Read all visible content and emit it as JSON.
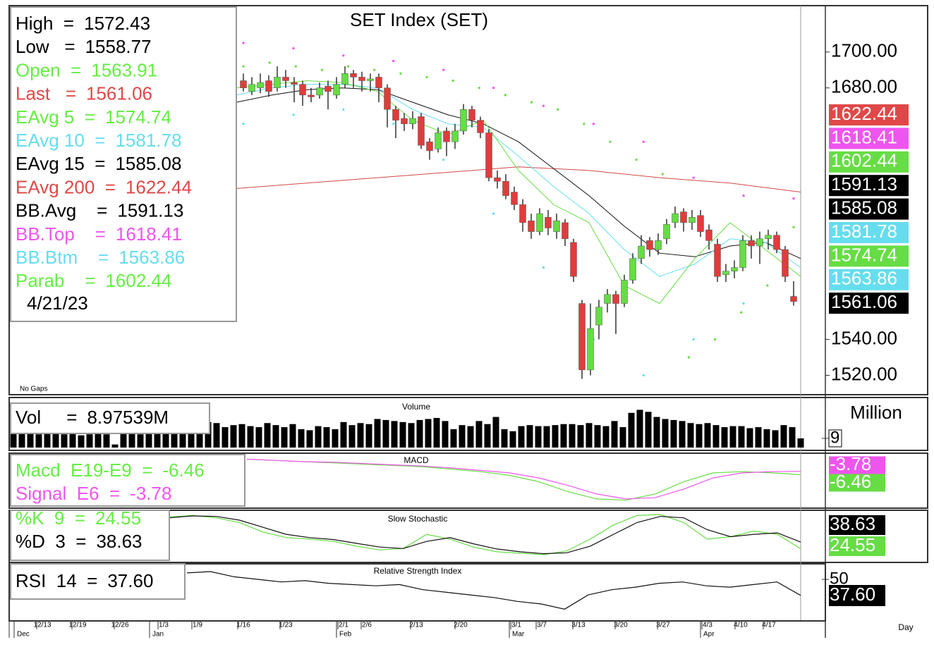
{
  "chart_data": [
    {
      "type": "candlestick",
      "title": "SET Index (SET)",
      "annotation": "No Gaps",
      "date": "4/21/23",
      "up_color": "#66dd44",
      "down_color": "#e03c3c",
      "readouts": [
        {
          "label": "High  =",
          "value": 1572.43,
          "color": "#000000"
        },
        {
          "label": "Low   =",
          "value": 1558.77,
          "color": "#000000"
        },
        {
          "label": "Open  =",
          "value": 1563.91,
          "color": "#66ee44"
        },
        {
          "label": "Last   =",
          "value": 1561.06,
          "color": "#e04848"
        },
        {
          "label": "EAvg 5  =",
          "value": 1574.74,
          "color": "#66ee44"
        },
        {
          "label": "EAvg 10  =",
          "value": 1581.78,
          "color": "#66ddee"
        },
        {
          "label": "EAvg 15  =",
          "value": 1585.08,
          "color": "#000000"
        },
        {
          "label": "EAvg 200  =",
          "value": 1622.44,
          "color": "#e04848"
        },
        {
          "label": "BB.Avg    =",
          "value": 1591.13,
          "color": "#000000"
        },
        {
          "label": "BB.Top    =",
          "value": 1618.41,
          "color": "#ee55ee"
        },
        {
          "label": "BB.Btm    =",
          "value": 1563.86,
          "color": "#66ddee"
        },
        {
          "label": "Parab    =",
          "value": 1602.44,
          "color": "#66ee44"
        }
      ],
      "open": [
        1684,
        1678,
        1680,
        1684,
        1680,
        1686,
        1683,
        1682,
        1676,
        1676,
        1681,
        1676,
        1682,
        1688,
        1686,
        1684,
        1686,
        1680,
        1668,
        1663,
        1660,
        1664,
        1650,
        1646,
        1656,
        1650,
        1656,
        1668,
        1662,
        1655,
        1630,
        1628,
        1622,
        1615,
        1606,
        1600,
        1608,
        1600,
        1605,
        1594,
        1560,
        1523,
        1548,
        1560,
        1565,
        1560,
        1573,
        1585,
        1595,
        1590,
        1596,
        1605,
        1611,
        1605,
        1609,
        1601,
        1593,
        1576,
        1578,
        1580,
        1595,
        1592,
        1596,
        1598,
        1590,
        1563.91
      ],
      "high": [
        1688,
        1686,
        1688,
        1687,
        1692,
        1690,
        1686,
        1684,
        1680,
        1683,
        1684,
        1686,
        1692,
        1690,
        1689,
        1688,
        1688,
        1682,
        1670,
        1666,
        1667,
        1666,
        1652,
        1658,
        1658,
        1660,
        1671,
        1670,
        1664,
        1657,
        1634,
        1632,
        1625,
        1618,
        1610,
        1613,
        1612,
        1610,
        1607,
        1596,
        1562,
        1560,
        1562,
        1568,
        1567,
        1576,
        1588,
        1598,
        1597,
        1599,
        1607,
        1614,
        1613,
        1612,
        1612,
        1604,
        1596,
        1582,
        1584,
        1598,
        1598,
        1600,
        1601,
        1600,
        1592,
        1572.43
      ],
      "low": [
        1678,
        1676,
        1677,
        1675,
        1678,
        1680,
        1672,
        1670,
        1672,
        1674,
        1668,
        1674,
        1680,
        1680,
        1678,
        1678,
        1672,
        1658,
        1652,
        1656,
        1657,
        1646,
        1640,
        1644,
        1642,
        1646,
        1654,
        1658,
        1652,
        1628,
        1624,
        1618,
        1612,
        1600,
        1596,
        1598,
        1598,
        1596,
        1592,
        1572,
        1518,
        1520,
        1540,
        1555,
        1543,
        1558,
        1571,
        1582,
        1586,
        1587,
        1593,
        1602,
        1600,
        1601,
        1597,
        1590,
        1572,
        1572,
        1574,
        1578,
        1585,
        1582,
        1590,
        1588,
        1572,
        1558.77
      ],
      "close": [
        1680,
        1682,
        1683,
        1678,
        1686,
        1684,
        1682,
        1676,
        1675,
        1680,
        1678,
        1682,
        1688,
        1686,
        1684,
        1685,
        1680,
        1668,
        1662,
        1660,
        1663,
        1648,
        1645,
        1655,
        1650,
        1656,
        1668,
        1662,
        1655,
        1630,
        1628,
        1620,
        1615,
        1605,
        1600,
        1610,
        1602,
        1606,
        1596,
        1575,
        1523,
        1546,
        1558,
        1565,
        1560,
        1573,
        1585,
        1592,
        1590,
        1595,
        1604,
        1610,
        1605,
        1608,
        1600,
        1595,
        1575,
        1578,
        1580,
        1595,
        1592,
        1596,
        1598,
        1590,
        1575,
        1561.06
      ],
      "lines": [
        {
          "color": "#d04848",
          "values": [
            1624,
            1627,
            1630,
            1633,
            1636,
            1634,
            1630,
            1627,
            1622
          ]
        },
        {
          "color": "#111111",
          "values": [
            1672,
            1676,
            1679,
            1680,
            1679,
            1672,
            1665,
            1660,
            1650,
            1635,
            1620,
            1603,
            1588,
            1586,
            1592,
            1594,
            1585
          ]
        },
        {
          "color": "#66ddee",
          "values": [
            1676,
            1680,
            1682,
            1682,
            1680,
            1668,
            1660,
            1658,
            1642,
            1625,
            1610,
            1590,
            1575,
            1582,
            1596,
            1594,
            1580
          ]
        },
        {
          "color": "#66dd44",
          "values": [
            1680,
            1682,
            1684,
            1683,
            1678,
            1662,
            1654,
            1662,
            1634,
            1615,
            1605,
            1570,
            1560,
            1585,
            1605,
            1590,
            1575
          ]
        }
      ],
      "dots": [
        {
          "color": "#66dd44",
          "values": [
            1692,
            1694,
            1692,
            1690,
            1692,
            1690,
            1688,
            1686,
            1684,
            1680,
            1676,
            1672,
            1668,
            1660,
            1650,
            1640,
            1632,
            1530,
            1540,
            1555,
            1570,
            1602.44
          ]
        },
        {
          "color": "#ee55ee",
          "values": [
            1705,
            1702,
            1698,
            1695,
            1690,
            1680,
            1670,
            1660,
            1650,
            1630,
            1620,
            1618.41
          ]
        },
        {
          "color": "#66ddee",
          "values": [
            1660,
            1665,
            1668,
            1660,
            1640,
            1610,
            1580,
            1540,
            1520,
            1540,
            1560,
            1563.86
          ]
        }
      ],
      "ylim": [
        1510,
        1725
      ],
      "yticks": [
        {
          "value": 1520,
          "label": "1520.00"
        },
        {
          "value": 1540,
          "label": "1540.00"
        },
        {
          "value": 1680,
          "label": "1680.00"
        },
        {
          "value": 1700,
          "label": "1700.00"
        }
      ]
    },
    {
      "type": "bar",
      "title": "Volume",
      "axis_label": "Million",
      "color": "#000000",
      "readouts": [
        {
          "label": "Vol     =",
          "value": 8.97539,
          "value_label": "8.97539M",
          "color": "#000000"
        }
      ],
      "values": [
        14,
        15,
        14,
        13,
        15,
        14,
        13,
        14,
        12,
        13,
        14,
        13,
        3,
        14,
        15,
        13,
        14,
        15,
        16,
        14,
        15,
        20,
        22,
        25,
        24,
        20,
        22,
        23,
        21,
        20,
        24,
        22,
        20,
        23,
        18,
        17,
        21,
        20,
        18,
        25,
        22,
        24,
        23,
        28,
        27,
        26,
        25,
        24,
        27,
        28,
        29,
        26,
        18,
        22,
        21,
        26,
        23,
        30,
        18,
        16,
        21,
        22,
        21,
        21,
        22,
        23,
        23,
        22,
        24,
        22,
        21,
        26,
        20,
        34,
        37,
        35,
        30,
        28,
        27,
        26,
        24,
        23,
        24,
        22,
        20,
        21,
        21,
        19,
        20,
        18,
        17,
        22,
        20,
        8.97539
      ],
      "ylim": [
        0,
        47
      ],
      "yticks": [
        9
      ]
    },
    {
      "type": "line",
      "title": "MACD",
      "readouts": [
        {
          "label": "Macd  E19-E9  =",
          "value": -6.46,
          "color": "#66ee44"
        },
        {
          "label": "Signal  E6  =",
          "value": -3.78,
          "color": "#ee55ee"
        }
      ],
      "series": [
        {
          "color": "#66dd44",
          "values": [
            6,
            5,
            4,
            3,
            2,
            1,
            0,
            -2,
            -4,
            -7,
            -12,
            -20,
            -26,
            -27,
            -22,
            -12,
            -5,
            -4,
            -5,
            -6.46
          ]
        },
        {
          "color": "#ee55ee",
          "values": [
            6,
            5,
            4,
            3.5,
            2.5,
            1.5,
            0.5,
            -1,
            -3,
            -5,
            -9,
            -15,
            -22,
            -26,
            -25,
            -18,
            -9,
            -5,
            -4,
            -3.78
          ]
        }
      ],
      "ylim": [
        -30,
        8
      ]
    },
    {
      "type": "line",
      "title": "Slow Stochastic",
      "readouts": [
        {
          "label": "%K  9  =",
          "value": 24.55,
          "color": "#66ee44"
        },
        {
          "label": "%D  3  =",
          "value": 38.63,
          "color": "#000000"
        }
      ],
      "series": [
        {
          "color": "#66dd44",
          "values": [
            92,
            95,
            90,
            80,
            60,
            48,
            45,
            40,
            30,
            22,
            25,
            55,
            45,
            28,
            18,
            15,
            12,
            20,
            45,
            75,
            95,
            97,
            80,
            45,
            50,
            62,
            55,
            24.55
          ]
        },
        {
          "color": "#111111",
          "values": [
            90,
            94,
            93,
            85,
            70,
            55,
            48,
            44,
            36,
            28,
            25,
            40,
            48,
            35,
            24,
            18,
            14,
            16,
            30,
            55,
            80,
            93,
            90,
            65,
            50,
            55,
            58,
            38.63
          ]
        }
      ],
      "ylim": [
        0,
        100
      ]
    },
    {
      "type": "line",
      "title": "Relative Strength Index",
      "readouts": [
        {
          "label": "RSI  14  =",
          "value": 37.6,
          "value_label": "37.60",
          "color": "#000000"
        }
      ],
      "series": [
        {
          "color": "#111111",
          "values": [
            55,
            56,
            52,
            50,
            48,
            49,
            47,
            46,
            45,
            46,
            42,
            40,
            38,
            36,
            33,
            31,
            27,
            38,
            42,
            44,
            47,
            48,
            45,
            44,
            46,
            48,
            37.6
          ]
        }
      ],
      "ylim": [
        13,
        62
      ],
      "yticks": [
        50
      ]
    }
  ],
  "x_axis": {
    "dates": [
      "12/13",
      "12/19",
      "12/26",
      "1/3",
      "1/9",
      "1/16",
      "1/23",
      "2/1",
      "2/6",
      "2/13",
      "2/20",
      "3/1",
      "3/7",
      "3/13",
      "3/20",
      "3/27",
      "4/3",
      "4/10",
      "4/17"
    ],
    "months": [
      "Dec",
      "Jan",
      "Feb",
      "Mar",
      "Apr"
    ],
    "label": "Day"
  }
}
